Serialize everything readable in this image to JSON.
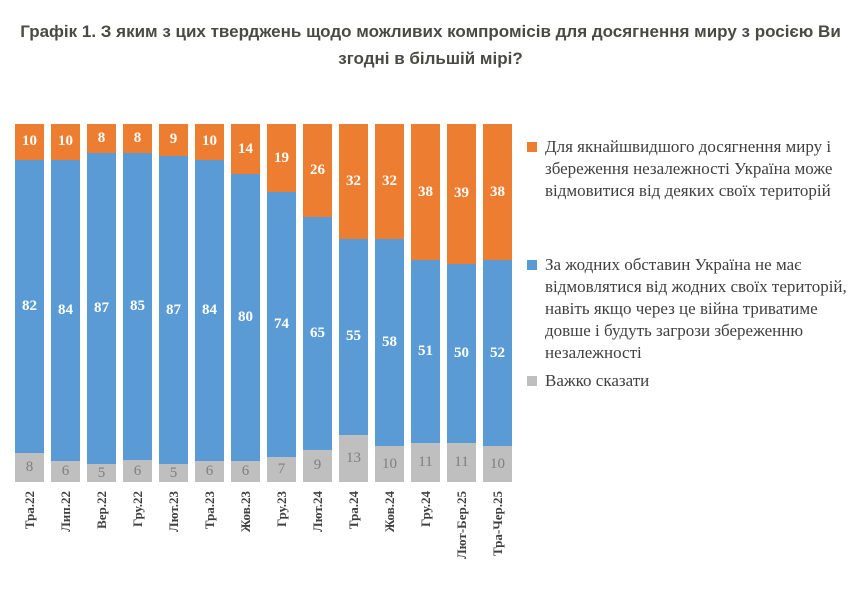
{
  "title": "Графік 1. З яким з цих тверджень щодо можливих компромісів для досягнення миру з росією Ви згодні в більшій мірі?",
  "colors": {
    "orange": "#ED7D31",
    "blue": "#5B9BD5",
    "gray": "#BFBFBF",
    "white_value_label": "#FFFFFF",
    "gray_value_label": "#7F7F7F",
    "axis_text": "#404040",
    "title_text": "#4A4A44",
    "background": "#FFFFFF"
  },
  "chart_data": {
    "type": "bar",
    "stacked": true,
    "percent_stacked": true,
    "title": "Графік 1. З яким з цих тверджень щодо можливих компромісів для досягнення миру з росією Ви згодні в більшій мірі?",
    "xlabel": "",
    "ylabel": "",
    "ylim": [
      0,
      100
    ],
    "grid": false,
    "legend_position": "right",
    "categories": [
      "Тра.22",
      "Лип.22",
      "Вер.22",
      "Гру.22",
      "Лют.23",
      "Тра.23",
      "Жов.23",
      "Гру.23",
      "Лют.24",
      "Тра.24",
      "Жов.24",
      "Гру.24",
      "Лют-Бер.25",
      "Тра-Чер.25"
    ],
    "series": [
      {
        "name": "Для якнайшвидшого досягнення миру і збереження незалежності Україна може відмовитися від деяких своїх територій",
        "color": "#ED7D31",
        "label_style": "white",
        "values": [
          10,
          10,
          8,
          8,
          9,
          10,
          14,
          19,
          26,
          32,
          32,
          38,
          39,
          38
        ]
      },
      {
        "name": "За жодних обставин Україна не має відмовлятися від жодних своїх територій, навіть якщо через це війна триватиме довше і будуть загрози збереженню незалежності",
        "color": "#5B9BD5",
        "label_style": "white",
        "values": [
          82,
          84,
          87,
          85,
          87,
          84,
          80,
          74,
          65,
          55,
          58,
          51,
          50,
          52
        ]
      },
      {
        "name": "Важко сказати",
        "color": "#BFBFBF",
        "label_style": "gray",
        "values": [
          8,
          6,
          5,
          6,
          5,
          6,
          6,
          7,
          9,
          13,
          10,
          11,
          11,
          10
        ]
      }
    ]
  }
}
